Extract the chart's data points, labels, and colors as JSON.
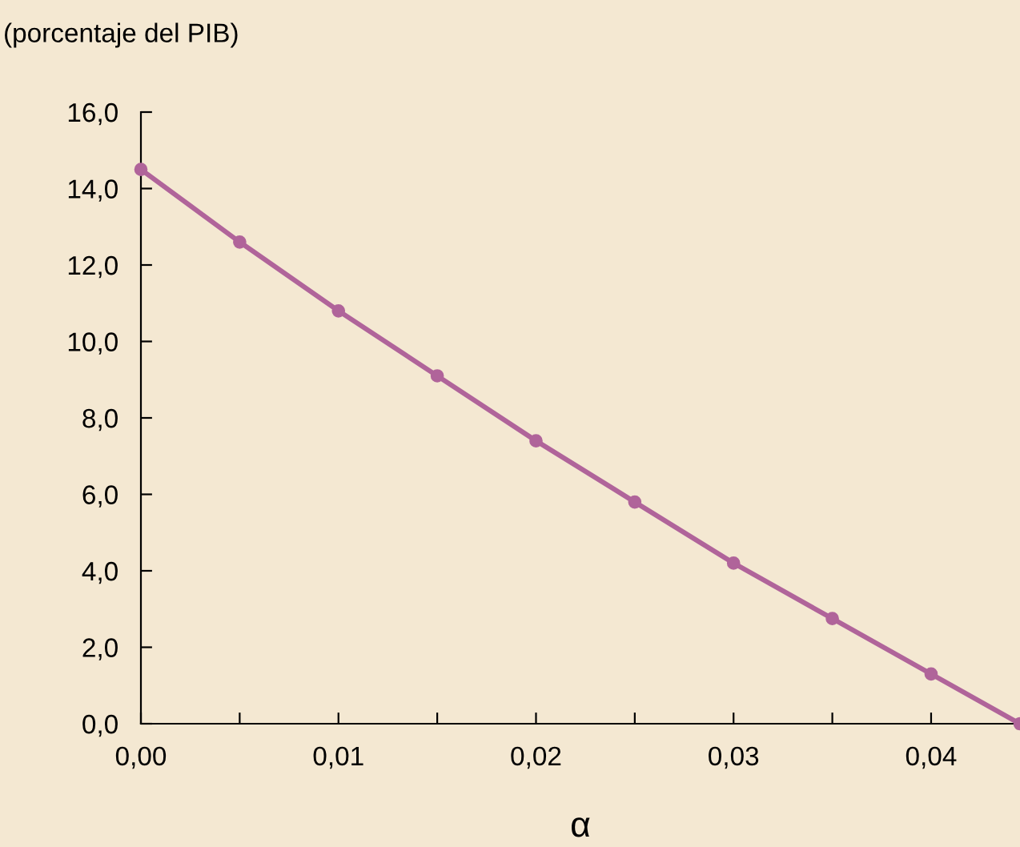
{
  "chart_data": {
    "type": "line",
    "ylabel": "(porcentaje del PIB)",
    "xlabel": "α",
    "x": [
      0,
      0.005,
      0.01,
      0.015,
      0.02,
      0.025,
      0.03,
      0.035,
      0.04,
      0.0445
    ],
    "series": [
      {
        "color": "#b0649a",
        "values": [
          14.5,
          12.6,
          10.8,
          9.1,
          7.4,
          5.8,
          4.2,
          2.75,
          1.3,
          0
        ]
      }
    ],
    "xlim": [
      0,
      0.0445
    ],
    "xticks": [
      {
        "value": 0,
        "label": "0,00"
      },
      {
        "value": 0.005,
        "label": null
      },
      {
        "value": 0.01,
        "label": "0,01"
      },
      {
        "value": 0.015,
        "label": null
      },
      {
        "value": 0.02,
        "label": "0,02"
      },
      {
        "value": 0.025,
        "label": null
      },
      {
        "value": 0.03,
        "label": "0,03"
      },
      {
        "value": 0.035,
        "label": null
      },
      {
        "value": 0.04,
        "label": "0,04"
      }
    ],
    "ylim": [
      0,
      16
    ],
    "yticks": [
      {
        "value": 0,
        "label": "0,0"
      },
      {
        "value": 2,
        "label": "2,0"
      },
      {
        "value": 4,
        "label": "4,0"
      },
      {
        "value": 6,
        "label": "6,0"
      },
      {
        "value": 8,
        "label": "8,0"
      },
      {
        "value": 10,
        "label": "10,0"
      },
      {
        "value": 12,
        "label": "12,0"
      },
      {
        "value": 14,
        "label": "14,0"
      },
      {
        "value": 16,
        "label": "16,0"
      }
    ],
    "grid": false,
    "legend": false,
    "marker": "circle",
    "line_style": "solid"
  }
}
